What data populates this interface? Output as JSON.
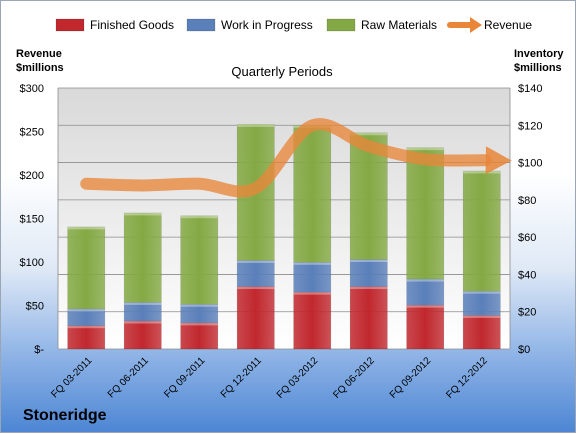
{
  "chart_data": {
    "type": "bar",
    "title": "Quarterly Periods",
    "company": "Stoneridge",
    "ylabel_left": [
      "Revenue",
      "$millions"
    ],
    "ylabel_right": [
      "Inventory",
      "$millions"
    ],
    "categories": [
      "FQ 03-2011",
      "FQ 06-2011",
      "FQ 09-2011",
      "FQ 12-2011",
      "FQ 03-2012",
      "FQ 06-2012",
      "FQ 09-2012",
      "FQ 12-2012"
    ],
    "stacked": true,
    "inventory_axis": {
      "min": 0,
      "max": 140,
      "step": 20,
      "tick_labels": [
        "$0",
        "$20",
        "$40",
        "$60",
        "$80",
        "$100",
        "$120",
        "$140"
      ]
    },
    "revenue_axis": {
      "min": 0,
      "max": 300,
      "step": 50,
      "tick_labels": [
        "$-",
        "$50",
        "$100",
        "$150",
        "$200",
        "$250",
        "$300"
      ]
    },
    "series": [
      {
        "name": "Finished Goods",
        "color": "#c0282e",
        "axis": "inventory",
        "values": [
          12.5,
          15,
          14,
          33.5,
          30.5,
          33.5,
          23.5,
          18
        ]
      },
      {
        "name": "Work in Progress",
        "color": "#5a7fb9",
        "axis": "inventory",
        "values": [
          9,
          10,
          10,
          14,
          16,
          14.5,
          14,
          13
        ]
      },
      {
        "name": "Raw Materials",
        "color": "#84a944",
        "axis": "inventory",
        "values": [
          44,
          48,
          47.5,
          73,
          73.5,
          68,
          70.5,
          64.5
        ]
      }
    ],
    "line_series": {
      "name": "Revenue",
      "color": "#e8863a",
      "axis": "revenue",
      "values": [
        190,
        188,
        190,
        185,
        257,
        233,
        218,
        217
      ]
    },
    "grid": true,
    "legend": "top"
  }
}
